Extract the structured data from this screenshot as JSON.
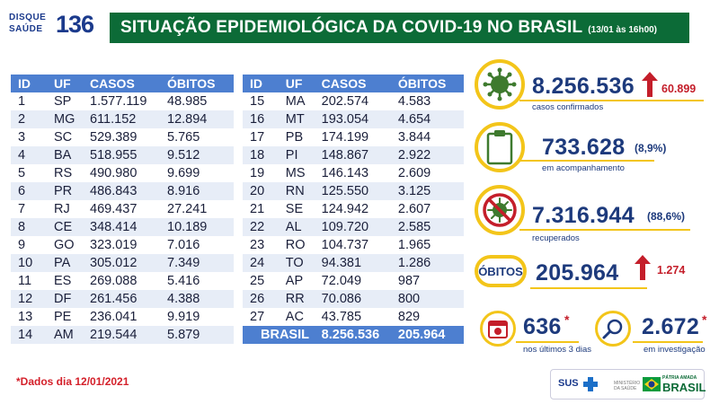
{
  "header": {
    "logo_line1": "DISQUE",
    "logo_line2": "SAÚDE",
    "logo_number": "136",
    "title": "SITUAÇÃO EPIDEMIOLÓGICA DA COVID-19 NO BRASIL",
    "date": "(13/01 às 16h00)"
  },
  "table": {
    "headers": [
      "ID",
      "UF",
      "CASOS",
      "ÓBITOS"
    ],
    "rows_left": [
      [
        "1",
        "SP",
        "1.577.119",
        "48.985"
      ],
      [
        "2",
        "MG",
        "611.152",
        "12.894"
      ],
      [
        "3",
        "SC",
        "529.389",
        "5.765"
      ],
      [
        "4",
        "BA",
        "518.955",
        "9.512"
      ],
      [
        "5",
        "RS",
        "490.980",
        "9.699"
      ],
      [
        "6",
        "PR",
        "486.843",
        "8.916"
      ],
      [
        "7",
        "RJ",
        "469.437",
        "27.241"
      ],
      [
        "8",
        "CE",
        "348.414",
        "10.189"
      ],
      [
        "9",
        "GO",
        "323.019",
        "7.016"
      ],
      [
        "10",
        "PA",
        "305.012",
        "7.349"
      ],
      [
        "11",
        "ES",
        "269.088",
        "5.416"
      ],
      [
        "12",
        "DF",
        "261.456",
        "4.388"
      ],
      [
        "13",
        "PE",
        "236.041",
        "9.919"
      ],
      [
        "14",
        "AM",
        "219.544",
        "5.879"
      ]
    ],
    "rows_right": [
      [
        "15",
        "MA",
        "202.574",
        "4.583"
      ],
      [
        "16",
        "MT",
        "193.054",
        "4.654"
      ],
      [
        "17",
        "PB",
        "174.199",
        "3.844"
      ],
      [
        "18",
        "PI",
        "148.867",
        "2.922"
      ],
      [
        "19",
        "MS",
        "146.143",
        "2.609"
      ],
      [
        "20",
        "RN",
        "125.550",
        "3.125"
      ],
      [
        "21",
        "SE",
        "124.942",
        "2.607"
      ],
      [
        "22",
        "AL",
        "109.720",
        "2.585"
      ],
      [
        "23",
        "RO",
        "104.737",
        "1.965"
      ],
      [
        "24",
        "TO",
        "94.381",
        "1.286"
      ],
      [
        "25",
        "AP",
        "72.049",
        "987"
      ],
      [
        "26",
        "RR",
        "70.086",
        "800"
      ],
      [
        "27",
        "AC",
        "43.785",
        "829"
      ]
    ],
    "total": {
      "label": "BRASIL",
      "cases": "8.256.536",
      "deaths": "205.964"
    }
  },
  "stats": {
    "confirmed": {
      "value": "8.256.536",
      "increase": "60.899",
      "label": "casos confirmados",
      "icon": "virus-icon"
    },
    "monitoring": {
      "value": "733.628",
      "pct": "(8,9%)",
      "label": "em acompanhamento",
      "icon": "clipboard-icon"
    },
    "recovered": {
      "value": "7.316.944",
      "pct": "(88,6%)",
      "label": "recuperados",
      "icon": "crossed-virus-icon"
    },
    "deaths": {
      "badge": "ÓBITOS",
      "value": "205.964",
      "increase": "1.274"
    },
    "recent": {
      "value": "636",
      "star": "*",
      "label": "nos últimos 3 dias",
      "icon": "calendar-icon"
    },
    "investigation": {
      "value": "2.672",
      "star": "*",
      "label": "em investigação",
      "icon": "magnifier-icon"
    }
  },
  "footnote": "*Dados dia 12/01/2021",
  "footer": {
    "sus": "SUS",
    "ministry": "MINISTÉRIO DA SAÚDE",
    "gov_tag": "PÁTRIA AMADA",
    "gov_name": "BRASIL"
  },
  "colors": {
    "header_green": "#0c6b37",
    "table_blue": "#4d7fd0",
    "accent_yellow": "#f3c51a",
    "alert_red": "#c41e2a",
    "text_navy": "#1d3a7c"
  }
}
